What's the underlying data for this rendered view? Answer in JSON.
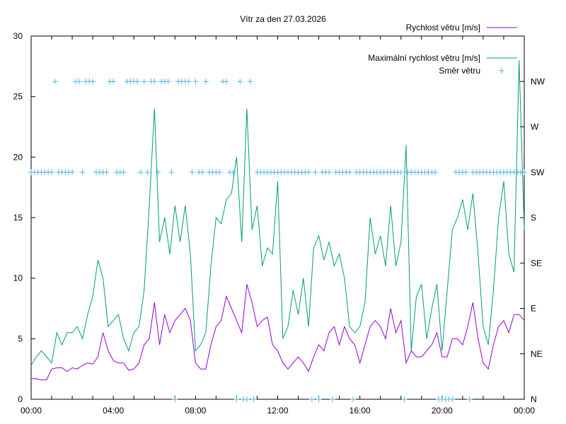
{
  "chart_data": {
    "type": "line",
    "title": "Vítr za den 27.03.2026",
    "xlabel": "",
    "ylabel": "",
    "xlim": [
      "00:00",
      "24:00"
    ],
    "ylim": [
      0,
      30
    ],
    "y2lim": [
      0,
      360
    ],
    "grid": false,
    "legend_position": "top-right",
    "x_tick_labels": [
      "00:00",
      "04:00",
      "08:00",
      "12:00",
      "16:00",
      "20:00",
      "00:00"
    ],
    "y_tick_labels": [
      "0",
      "5",
      "10",
      "15",
      "20",
      "25",
      "30"
    ],
    "y2_tick_labels": [
      {
        "label": "N",
        "deg": 0
      },
      {
        "label": "NE",
        "deg": 45
      },
      {
        "label": "E",
        "deg": 90
      },
      {
        "label": "SE",
        "deg": 135
      },
      {
        "label": "S",
        "deg": 180
      },
      {
        "label": "SW",
        "deg": 225
      },
      {
        "label": "W",
        "deg": 270
      },
      {
        "label": "NW",
        "deg": 315
      }
    ],
    "colors": {
      "speed": "#9400d3",
      "gust": "#009e73",
      "direction": "#56b4e9"
    },
    "speed_times_step": "15 min",
    "series": [
      {
        "name": "Rychlost větru [m/s]",
        "values": [
          1.7,
          1.7,
          1.6,
          1.6,
          2.5,
          2.6,
          2.6,
          2.3,
          2.6,
          2.5,
          2.8,
          3.0,
          2.9,
          3.5,
          5.5,
          4.0,
          3.2,
          3.0,
          3.0,
          2.4,
          2.5,
          3.0,
          4.5,
          5.0,
          8.0,
          4.5,
          7.0,
          5.5,
          6.5,
          7.0,
          7.5,
          6.5,
          3.0,
          2.5,
          2.5,
          4.5,
          6.0,
          6.5,
          8.5,
          7.5,
          6.5,
          5.5,
          9.5,
          8.0,
          6.0,
          6.5,
          6.8,
          4.5,
          4.0,
          3.0,
          2.5,
          3.0,
          3.5,
          3.0,
          2.3,
          3.5,
          4.5,
          4.0,
          5.5,
          6.0,
          4.5,
          6.0,
          5.0,
          4.5,
          3.0,
          4.5,
          6.0,
          6.5,
          6.0,
          5.0,
          7.5,
          5.5,
          6.5,
          3.0,
          4.0,
          3.5,
          3.5,
          4.0,
          4.5,
          5.5,
          3.5,
          3.5,
          5.0,
          5.0,
          4.5,
          6.0,
          8.0,
          5.0,
          3.0,
          2.5,
          4.5,
          6.0,
          6.5,
          5.5,
          7.0,
          7.0,
          6.5
        ]
      },
      {
        "name": "Maximální rychlost větru [m/s]",
        "values": [
          2.8,
          3.5,
          4.0,
          3.5,
          3.0,
          5.5,
          4.5,
          5.5,
          5.5,
          6.0,
          5.0,
          7.0,
          8.5,
          11.5,
          10.0,
          6.0,
          6.5,
          7.0,
          5.0,
          4.0,
          5.5,
          6.0,
          9.0,
          16.0,
          24.0,
          13.0,
          15.0,
          12.0,
          16.0,
          13.0,
          16.0,
          12.0,
          4.0,
          4.5,
          5.5,
          11.0,
          15.0,
          14.5,
          16.5,
          17.0,
          20.0,
          13.0,
          24.0,
          14.0,
          16.0,
          11.0,
          12.5,
          12.0,
          18.0,
          5.0,
          6.0,
          9.0,
          7.0,
          10.0,
          6.0,
          12.5,
          13.5,
          11.5,
          13.0,
          11.0,
          12.0,
          10.0,
          6.0,
          5.5,
          6.0,
          8.0,
          15.0,
          12.0,
          13.5,
          11.0,
          16.0,
          11.0,
          13.0,
          21.0,
          4.0,
          8.5,
          9.5,
          5.0,
          7.5,
          9.5,
          4.0,
          9.0,
          14.0,
          15.0,
          16.5,
          14.0,
          17.0,
          12.0,
          6.0,
          4.5,
          9.0,
          15.0,
          18.0,
          12.0,
          10.5,
          28.0,
          14.0
        ]
      },
      {
        "name": "Směr větru",
        "axis": "y2",
        "times_step": "10 min",
        "values": [
          225,
          225,
          225,
          225,
          225,
          225,
          225,
          315,
          225,
          225,
          225,
          225,
          225,
          315,
          315,
          225,
          315,
          315,
          315,
          225,
          225,
          225,
          225,
          315,
          315,
          225,
          225,
          225,
          315,
          315,
          315,
          315,
          225,
          315,
          225,
          315,
          315,
          225,
          315,
          315,
          315,
          225,
          0,
          315,
          315,
          315,
          315,
          225,
          315,
          225,
          225,
          315,
          225,
          225,
          225,
          225,
          315,
          315,
          225,
          225,
          0,
          315,
          0,
          0,
          315,
          0,
          225,
          225,
          225,
          225,
          225,
          225,
          225,
          225,
          225,
          225,
          225,
          225,
          225,
          225,
          225,
          225,
          0,
          225,
          0,
          225,
          225,
          225,
          0,
          225,
          225,
          225,
          225,
          225,
          0,
          225,
          225,
          225,
          225,
          225,
          225,
          225,
          225,
          225,
          225,
          225,
          225,
          225,
          225,
          0,
          225,
          225,
          225,
          225,
          225,
          225,
          225,
          225,
          225,
          0,
          0,
          0,
          0,
          0,
          225,
          225,
          225,
          225,
          0,
          225,
          225,
          225,
          225,
          225,
          225,
          225,
          225,
          225,
          225,
          225,
          225,
          225,
          225,
          225,
          225
        ]
      }
    ]
  }
}
